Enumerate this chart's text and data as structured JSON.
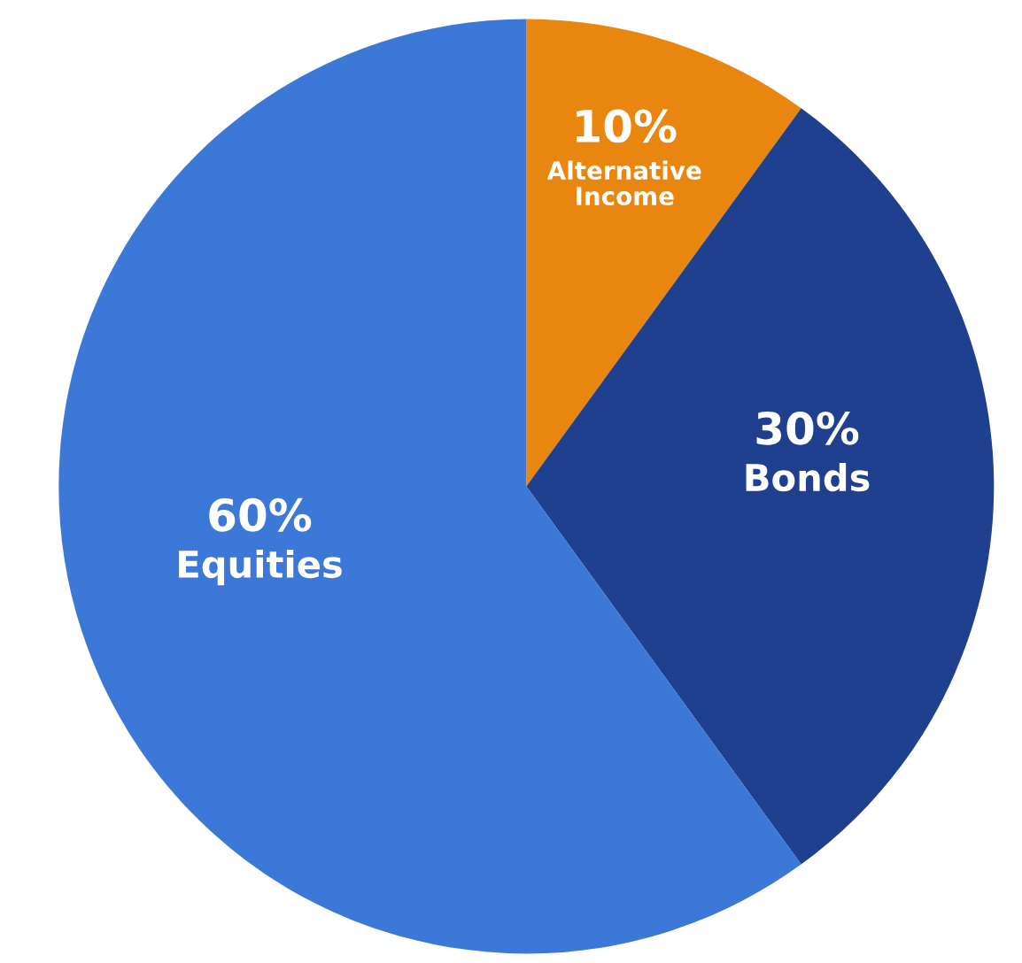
{
  "chart_data": {
    "type": "pie",
    "categories": [
      "Alternative Income",
      "Bonds",
      "Equities"
    ],
    "values": [
      10,
      30,
      60
    ],
    "colors": [
      "#e8860f",
      "#1f3f8f",
      "#3b78d8"
    ],
    "value_labels": [
      "10%",
      "30%",
      "60%"
    ],
    "legend": false
  }
}
